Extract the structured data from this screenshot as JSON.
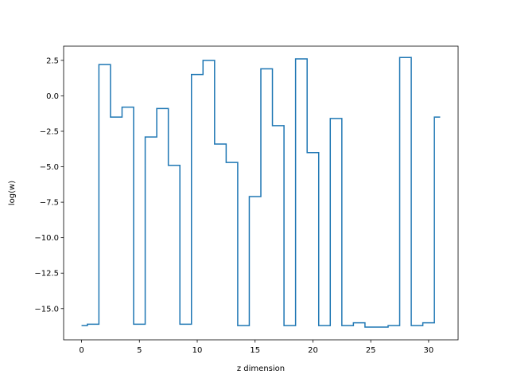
{
  "chart_data": {
    "type": "line",
    "drawstyle": "steps-mid",
    "title": "",
    "xlabel": "z dimension",
    "ylabel": "log(w)",
    "xlim": [
      -1.55,
      32.55
    ],
    "ylim": [
      -17.2,
      3.5
    ],
    "grid": false,
    "color": "#1f77b4",
    "xticks": [
      {
        "value": 0,
        "label": "0"
      },
      {
        "value": 5,
        "label": "5"
      },
      {
        "value": 10,
        "label": "10"
      },
      {
        "value": 15,
        "label": "15"
      },
      {
        "value": 20,
        "label": "20"
      },
      {
        "value": 25,
        "label": "25"
      },
      {
        "value": 30,
        "label": "30"
      }
    ],
    "yticks": [
      {
        "value": 2.5,
        "label": "2.5"
      },
      {
        "value": 0,
        "label": "0.0"
      },
      {
        "value": -2.5,
        "label": "−2.5"
      },
      {
        "value": -5,
        "label": "−5.0"
      },
      {
        "value": -7.5,
        "label": "−7.5"
      },
      {
        "value": -10,
        "label": "−10.0"
      },
      {
        "value": -12.5,
        "label": "−12.5"
      },
      {
        "value": -15,
        "label": "−15.0"
      }
    ],
    "series": [
      {
        "x": [
          0,
          1,
          2,
          3,
          4,
          5,
          6,
          7,
          8,
          9,
          10,
          11,
          12,
          13,
          14,
          15,
          16,
          17,
          18,
          19,
          20,
          21,
          22,
          23,
          24,
          25,
          26,
          27,
          28,
          29,
          30,
          31
        ],
        "values": [
          -16.2,
          -16.1,
          2.2,
          -1.5,
          -0.8,
          -16.1,
          -2.9,
          -0.9,
          -4.9,
          -16.1,
          1.5,
          2.5,
          -3.4,
          -4.7,
          -16.2,
          -7.1,
          1.9,
          -2.1,
          -16.2,
          2.6,
          -4,
          -16.2,
          -1.6,
          -16.2,
          -16,
          -16.3,
          -16.3,
          -16.2,
          2.7,
          -16.2,
          -16,
          -1.5
        ]
      }
    ]
  }
}
